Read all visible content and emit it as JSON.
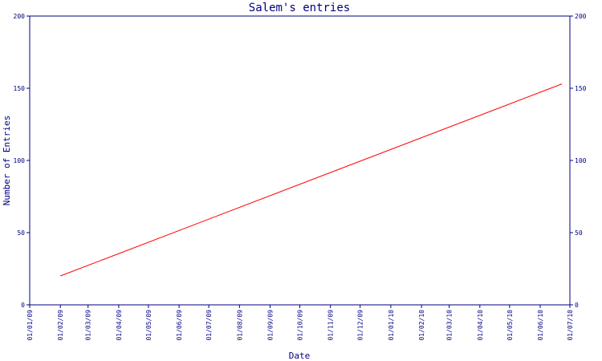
{
  "colors": {
    "axis": "#000080",
    "series": "#ff0000",
    "background": "#ffffff"
  },
  "chart_data": {
    "type": "line",
    "title": "Salem's entries",
    "xlabel": "Date",
    "ylabel": "Number of Entries",
    "ylim": [
      0,
      200
    ],
    "yticks": [
      "0",
      "50",
      "100",
      "150",
      "200"
    ],
    "xticks": [
      "01/01/09",
      "01/02/09",
      "01/03/09",
      "01/04/09",
      "01/05/09",
      "01/06/09",
      "01/07/09",
      "01/08/09",
      "01/09/09",
      "01/10/09",
      "01/11/09",
      "01/12/09",
      "01/01/10",
      "01/02/10",
      "01/03/10",
      "01/04/10",
      "01/05/10",
      "01/06/10",
      "01/07/10"
    ],
    "xlim": [
      "2009-01-01",
      "2010-07-01"
    ],
    "grid": false,
    "series": [
      {
        "x": [
          "2009-02-01",
          "2010-06-23"
        ],
        "y": [
          20,
          153
        ]
      }
    ]
  }
}
